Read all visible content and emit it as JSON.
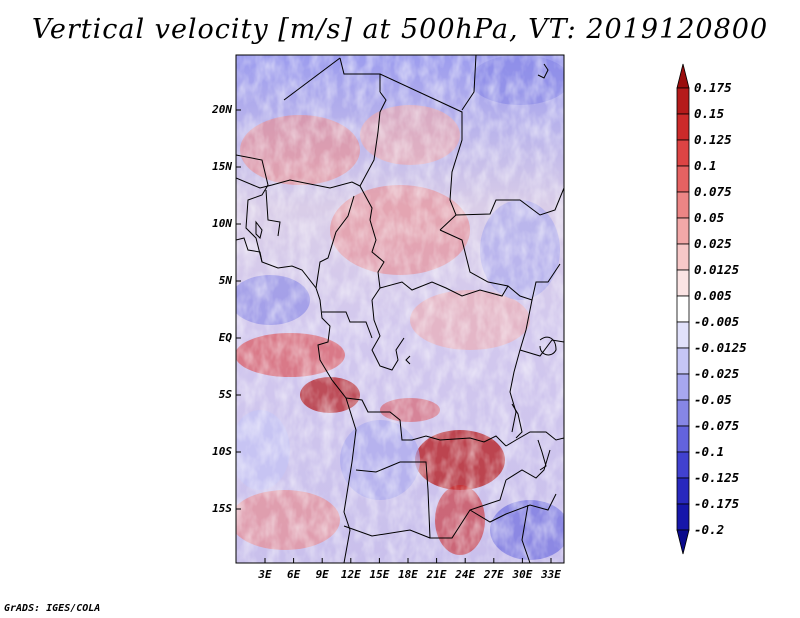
{
  "title": "Vertical velocity [m/s] at 500hPa, VT: 2019120800",
  "credit": "GrADS: IGES/COLA",
  "map": {
    "y_ticks": [
      "20N",
      "15N",
      "10N",
      "5N",
      "EQ",
      "5S",
      "10S",
      "15S"
    ],
    "x_ticks": [
      "3E",
      "6E",
      "9E",
      "12E",
      "15E",
      "18E",
      "21E",
      "24E",
      "27E",
      "30E",
      "33E"
    ],
    "field_bounds": {
      "lon": [
        0,
        34.8
      ],
      "lat": [
        -20,
        24.5
      ]
    }
  },
  "colorbar": {
    "levels": [
      "0.175",
      "0.15",
      "0.125",
      "0.1",
      "0.075",
      "0.05",
      "0.025",
      "0.0125",
      "0.005",
      "-0.005",
      "-0.0125",
      "-0.025",
      "-0.05",
      "-0.075",
      "-0.1",
      "-0.125",
      "-0.175",
      "-0.2"
    ],
    "colors": [
      "#9a0d0d",
      "#b51a1a",
      "#cc2a2a",
      "#dd4444",
      "#e56262",
      "#ec8585",
      "#f2a8a8",
      "#f7c8c8",
      "#fbe4e4",
      "#ffffff",
      "#e1e1fb",
      "#c5c5f5",
      "#a7a7ef",
      "#8686e6",
      "#6363dd",
      "#4141cf",
      "#2828be",
      "#1616aa",
      "#0a0a8c"
    ]
  },
  "colors": {
    "positive": "#e06060",
    "negative": "#6a6adf",
    "boundary": "#000000"
  }
}
